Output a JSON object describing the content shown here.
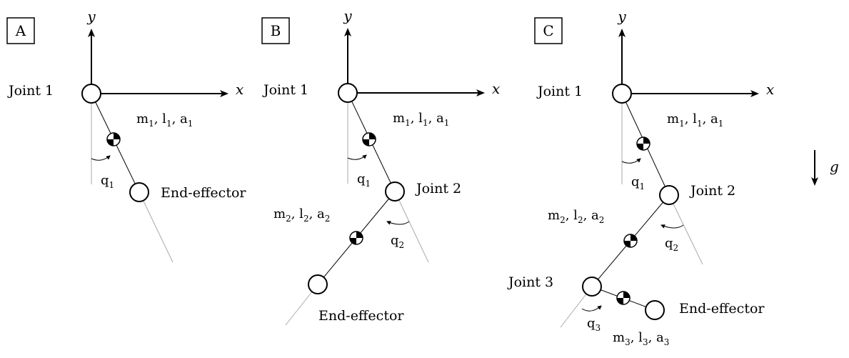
{
  "panels": [
    {
      "letter": "A",
      "x_label": "x",
      "y_label": "y",
      "joints": [
        {
          "label": "Joint 1"
        }
      ],
      "links": [
        {
          "m": "m",
          "l": "l",
          "a": "a",
          "index": "1"
        }
      ],
      "angles": [
        {
          "q": "q",
          "index": "1"
        }
      ],
      "end_label": "End-effector"
    },
    {
      "letter": "B",
      "x_label": "x",
      "y_label": "y",
      "joints": [
        {
          "label": "Joint 1"
        },
        {
          "label": "Joint 2"
        }
      ],
      "links": [
        {
          "m": "m",
          "l": "l",
          "a": "a",
          "index": "1"
        },
        {
          "m": "m",
          "l": "l",
          "a": "a",
          "index": "2"
        }
      ],
      "angles": [
        {
          "q": "q",
          "index": "1"
        },
        {
          "q": "q",
          "index": "2"
        }
      ],
      "end_label": "End-effector"
    },
    {
      "letter": "C",
      "x_label": "x",
      "y_label": "y",
      "joints": [
        {
          "label": "Joint 1"
        },
        {
          "label": "Joint 2"
        },
        {
          "label": "Joint 3"
        }
      ],
      "links": [
        {
          "m": "m",
          "l": "l",
          "a": "a",
          "index": "1"
        },
        {
          "m": "m",
          "l": "l",
          "a": "a",
          "index": "2"
        },
        {
          "m": "m",
          "l": "l",
          "a": "a",
          "index": "3"
        }
      ],
      "angles": [
        {
          "q": "q",
          "index": "1"
        },
        {
          "q": "q",
          "index": "2"
        },
        {
          "q": "q",
          "index": "3"
        }
      ],
      "end_label": "End-effector"
    }
  ],
  "gravity_label": "g"
}
